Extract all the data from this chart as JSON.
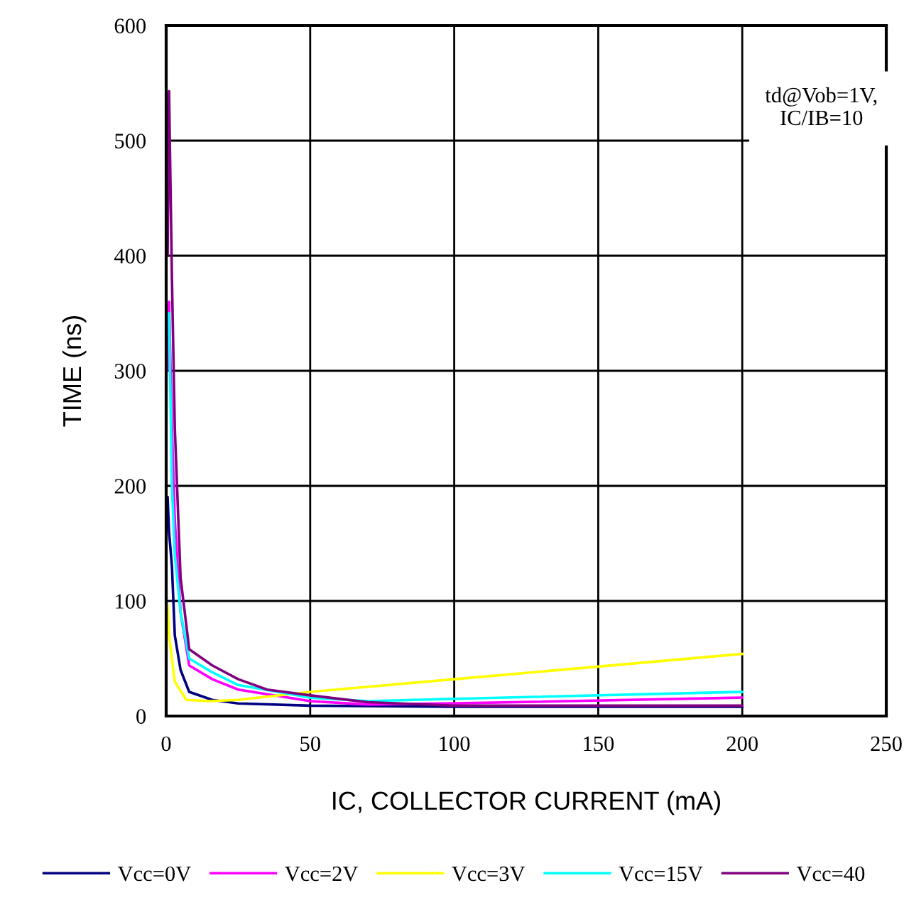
{
  "chart_data": {
    "type": "line",
    "xlabel": "IC, COLLECTOR CURRENT (mA)",
    "ylabel": "TIME (ns)",
    "annotations": [
      "td@Vob=1V,\nIC/IB=10"
    ],
    "xlim": [
      0,
      250
    ],
    "xticks": [
      0,
      50,
      100,
      150,
      200,
      250
    ],
    "ylim": [
      0,
      600
    ],
    "yticks": [
      0,
      100,
      200,
      300,
      400,
      500,
      600
    ],
    "grid": true,
    "legend": "bottom",
    "marker": "none",
    "line_style": "solid",
    "series": [
      {
        "name": "Vcc=0V",
        "color": "#000080",
        "x": [
          0.5,
          1,
          2,
          3,
          5,
          8,
          16,
          25,
          50,
          100,
          200
        ],
        "values": [
          190,
          160,
          130,
          70,
          40,
          21,
          14,
          11,
          9,
          8,
          8
        ]
      },
      {
        "name": "Vcc=2V",
        "color": "#ff00ff",
        "x": [
          0.5,
          1,
          2,
          3,
          5,
          8,
          16,
          25,
          50,
          70,
          100,
          200
        ],
        "values": [
          300,
          360,
          250,
          170,
          90,
          44,
          32,
          23,
          13,
          10,
          11,
          16
        ]
      },
      {
        "name": "Vcc=3V",
        "color": "#ffff00",
        "x": [
          0.5,
          1,
          3,
          7,
          15,
          25,
          50,
          100,
          150,
          200
        ],
        "values": [
          96,
          70,
          30,
          14,
          13,
          14,
          21,
          32,
          43,
          54
        ]
      },
      {
        "name": "Vcc=15V",
        "color": "#00ffff",
        "x": [
          1,
          2,
          3,
          5,
          8,
          16,
          25,
          50,
          70,
          100,
          200
        ],
        "values": [
          350,
          200,
          140,
          90,
          50,
          38,
          27,
          16,
          13,
          15,
          21
        ]
      },
      {
        "name": "Vcc=40",
        "color": "#800080",
        "x": [
          0.5,
          1,
          2,
          3,
          5,
          8,
          16,
          25,
          35,
          50,
          70,
          100,
          200
        ],
        "values": [
          400,
          543,
          380,
          250,
          120,
          58,
          44,
          32,
          23,
          18,
          12,
          9,
          9
        ]
      }
    ]
  }
}
